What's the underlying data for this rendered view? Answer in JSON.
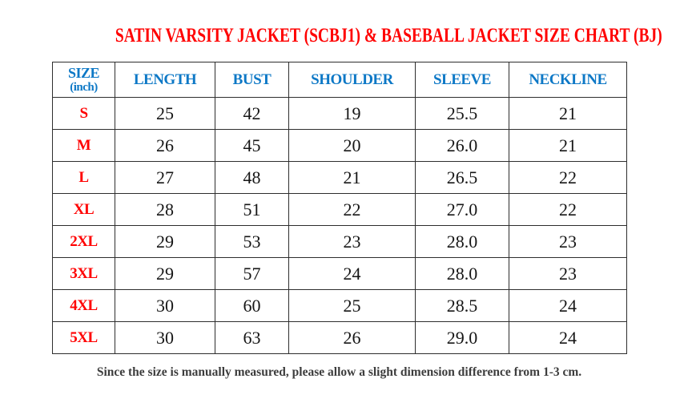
{
  "title": "SATIN VARSITY JACKET (SCBJ1) & BASEBALL JACKET SIZE CHART (BJ)",
  "table": {
    "header": {
      "size_label": "SIZE",
      "size_unit": "(inch)",
      "columns": [
        "LENGTH",
        "BUST",
        "SHOULDER",
        "SLEEVE",
        "NECKLINE"
      ]
    },
    "rows": [
      {
        "size": "S",
        "values": [
          "25",
          "42",
          "19",
          "25.5",
          "21"
        ]
      },
      {
        "size": "M",
        "values": [
          "26",
          "45",
          "20",
          "26.0",
          "21"
        ]
      },
      {
        "size": "L",
        "values": [
          "27",
          "48",
          "21",
          "26.5",
          "22"
        ]
      },
      {
        "size": "XL",
        "values": [
          "28",
          "51",
          "22",
          "27.0",
          "22"
        ]
      },
      {
        "size": "2XL",
        "values": [
          "29",
          "53",
          "23",
          "28.0",
          "23"
        ]
      },
      {
        "size": "3XL",
        "values": [
          "29",
          "57",
          "24",
          "28.0",
          "23"
        ]
      },
      {
        "size": "4XL",
        "values": [
          "30",
          "60",
          "25",
          "28.5",
          "24"
        ]
      },
      {
        "size": "5XL",
        "values": [
          "30",
          "63",
          "26",
          "29.0",
          "24"
        ]
      }
    ]
  },
  "footer_note": "Since the size is manually measured, please allow a slight dimension difference from 1-3 cm.",
  "colors": {
    "title_red": "#FF0000",
    "size_red": "#FF0000",
    "header_blue": "#0D78C6",
    "value_black": "#161616",
    "note_gray": "#3D3D3D",
    "border_color": "#2E2E2E"
  },
  "chart_data": {
    "type": "table",
    "title": "SATIN VARSITY JACKET (SCBJ1) & BASEBALL JACKET SIZE CHART (BJ)",
    "unit": "inch",
    "columns": [
      "SIZE (inch)",
      "LENGTH",
      "BUST",
      "SHOULDER",
      "SLEEVE",
      "NECKLINE"
    ],
    "rows": [
      [
        "S",
        25,
        42,
        19,
        25.5,
        21
      ],
      [
        "M",
        26,
        45,
        20,
        26.0,
        21
      ],
      [
        "L",
        27,
        48,
        21,
        26.5,
        22
      ],
      [
        "XL",
        28,
        51,
        22,
        27.0,
        22
      ],
      [
        "2XL",
        29,
        53,
        23,
        28.0,
        23
      ],
      [
        "3XL",
        29,
        57,
        24,
        28.0,
        23
      ],
      [
        "4XL",
        30,
        60,
        25,
        28.5,
        24
      ],
      [
        "5XL",
        30,
        63,
        26,
        29.0,
        24
      ]
    ],
    "note": "Since the size is manually measured, please allow a slight dimension difference from 1-3 cm."
  }
}
